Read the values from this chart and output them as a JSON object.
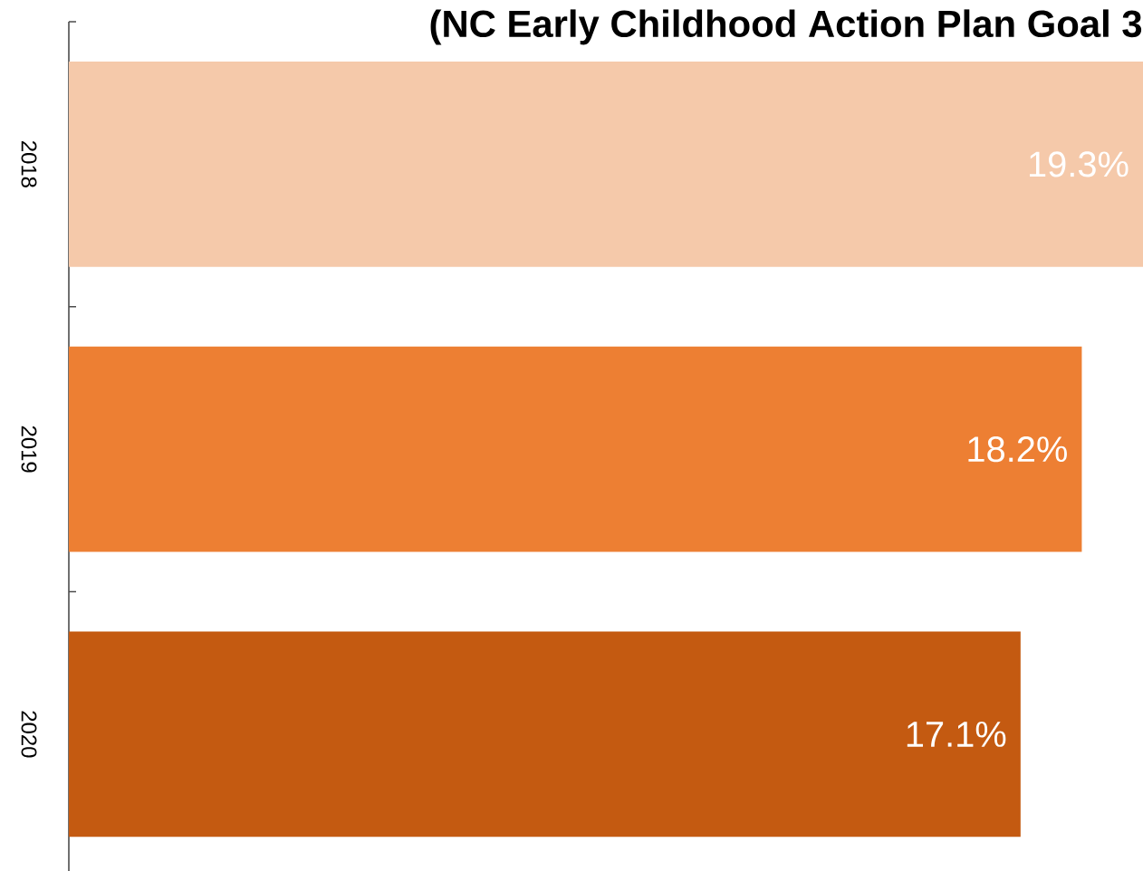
{
  "chart_data": {
    "type": "bar",
    "orientation": "horizontal",
    "title": "(NC Early Childhood Action Plan Goal 3",
    "categories": [
      "2018",
      "2019",
      "2020"
    ],
    "values": [
      19.3,
      18.2,
      17.1
    ],
    "colors": [
      "#f5c9aa",
      "#ed7f33",
      "#c45a11"
    ],
    "value_labels": [
      "19.3%",
      "18.2%",
      "17.1%"
    ]
  }
}
